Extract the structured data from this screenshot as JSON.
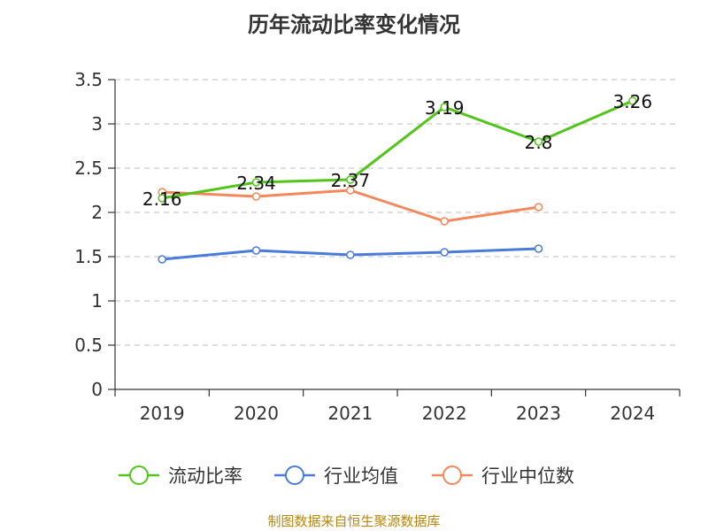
{
  "title": "历年流动比率变化情况",
  "source": "制图数据来自恒生聚源数据库",
  "chart_data": {
    "type": "line",
    "categories": [
      "2019",
      "2020",
      "2021",
      "2022",
      "2023",
      "2024"
    ],
    "ylim": [
      0,
      3.5
    ],
    "yticks": [
      "0",
      "0.5",
      "1",
      "1.5",
      "2",
      "2.5",
      "3",
      "3.5"
    ],
    "grid": true,
    "legend_position": "bottom",
    "series": [
      {
        "name": "流动比率",
        "color": "#52c41a",
        "values": [
          2.16,
          2.34,
          2.37,
          3.19,
          2.8,
          3.26
        ],
        "labels": [
          "2.16",
          "2.34",
          "2.37",
          "3.19",
          "2.8",
          "3.26"
        ]
      },
      {
        "name": "行业均值",
        "color": "#4a7bd9",
        "values": [
          1.47,
          1.57,
          1.52,
          1.55,
          1.59,
          null
        ]
      },
      {
        "name": "行业中位数",
        "color": "#f4885b",
        "values": [
          2.23,
          2.18,
          2.25,
          1.9,
          2.06,
          null
        ]
      }
    ]
  }
}
